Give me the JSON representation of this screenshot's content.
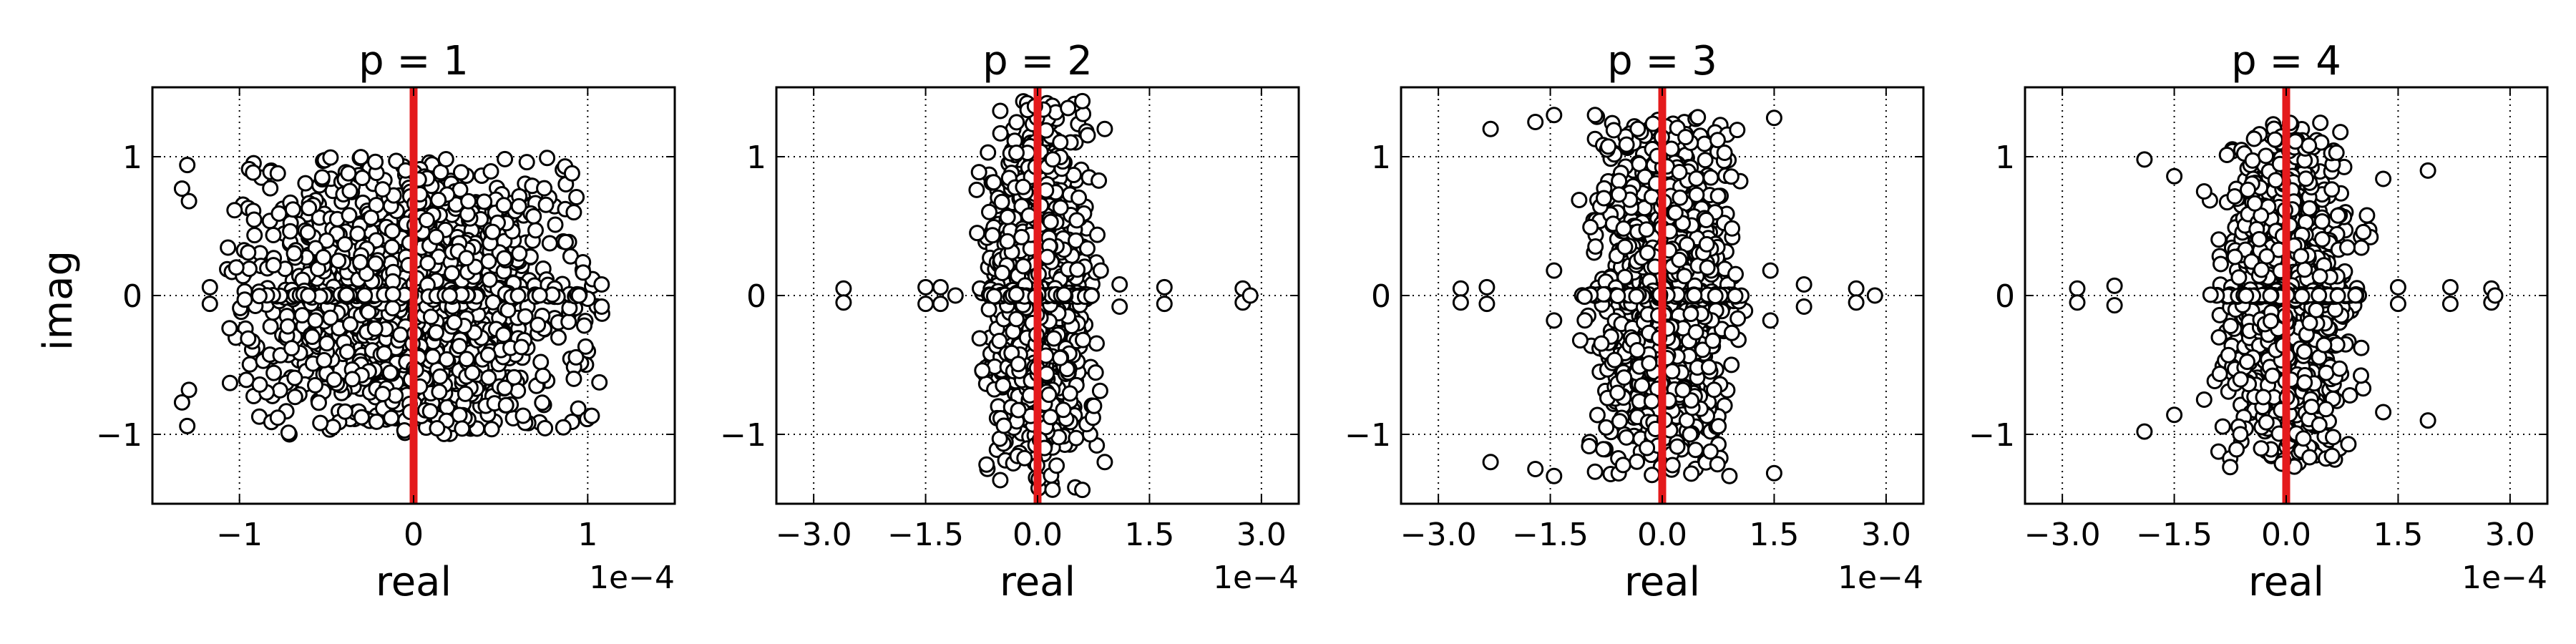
{
  "figure": {
    "ylabel": "imag",
    "xlabel": "real",
    "offset_text": "1e−4"
  },
  "chart_data": [
    {
      "type": "scatter",
      "title": "p = 1",
      "xlabel": "real",
      "ylabel": "imag",
      "x_scale_text": "1e−4",
      "xlim": [
        -1.5,
        1.5
      ],
      "ylim": [
        -1.5,
        1.5
      ],
      "x_ticks": [
        -1,
        0,
        1
      ],
      "x_tick_labels": [
        "−1",
        "0",
        "1"
      ],
      "y_ticks": [
        -1,
        0,
        1
      ],
      "y_tick_labels": [
        "−1",
        "0",
        "1"
      ],
      "grid": true,
      "marker": "open-circle",
      "reference_line": {
        "x": 0,
        "color": "#e41a1c"
      },
      "cloud": {
        "x_spread": 0.45,
        "y_spread": 0.55,
        "x_max": 1.1,
        "y_max": 1.0,
        "count": 1400
      },
      "points": [
        {
          "x": -1.3,
          "y": 0.94
        },
        {
          "x": -1.33,
          "y": 0.77
        },
        {
          "x": -1.29,
          "y": 0.68
        },
        {
          "x": -1.3,
          "y": -0.94
        },
        {
          "x": -1.33,
          "y": -0.77
        },
        {
          "x": -1.29,
          "y": -0.68
        },
        {
          "x": -1.17,
          "y": 0.06
        },
        {
          "x": -1.17,
          "y": -0.06
        },
        {
          "x": -0.97,
          "y": 0.03
        },
        {
          "x": -0.97,
          "y": -0.03
        },
        {
          "x": -0.95,
          "y": 0.31
        },
        {
          "x": -0.95,
          "y": -0.31
        },
        {
          "x": -0.78,
          "y": 0.88
        },
        {
          "x": -0.78,
          "y": -0.88
        },
        {
          "x": 0.87,
          "y": 0.93
        },
        {
          "x": 0.91,
          "y": 0.88
        },
        {
          "x": 0.91,
          "y": -0.91
        },
        {
          "x": 0.86,
          "y": -0.95
        },
        {
          "x": 0.92,
          "y": 0.6
        },
        {
          "x": 0.92,
          "y": -0.6
        },
        {
          "x": 1.08,
          "y": 0.08
        },
        {
          "x": 1.08,
          "y": -0.08
        },
        {
          "x": 0.95,
          "y": 0.0
        }
      ]
    },
    {
      "type": "scatter",
      "title": "p = 2",
      "xlabel": "",
      "ylabel": "",
      "x_scale_text": "1e−4",
      "xlim": [
        -3.5,
        3.5
      ],
      "ylim": [
        -1.5,
        1.5
      ],
      "x_ticks": [
        -3.0,
        -1.5,
        0.0,
        1.5,
        3.0
      ],
      "x_tick_labels": [
        "−3.0",
        "−1.5",
        "0.0",
        "1.5",
        "3.0"
      ],
      "y_ticks": [
        -1,
        0,
        1
      ],
      "y_tick_labels": [
        "−1",
        "0",
        "1"
      ],
      "grid": true,
      "marker": "open-circle",
      "reference_line": {
        "x": 0,
        "color": "#e41a1c"
      },
      "cloud": {
        "x_spread": 0.32,
        "y_spread": 0.65,
        "x_max": 0.85,
        "y_max": 1.4,
        "count": 1100
      },
      "points": [
        {
          "x": -2.6,
          "y": 0.05
        },
        {
          "x": -2.6,
          "y": -0.05
        },
        {
          "x": -1.5,
          "y": 0.06
        },
        {
          "x": -1.5,
          "y": -0.06
        },
        {
          "x": -1.3,
          "y": 0.06
        },
        {
          "x": -1.3,
          "y": -0.06
        },
        {
          "x": -1.1,
          "y": 0.0
        },
        {
          "x": 0.9,
          "y": 1.2
        },
        {
          "x": 0.9,
          "y": -1.2
        },
        {
          "x": 0.6,
          "y": 1.4
        },
        {
          "x": 0.6,
          "y": -1.4
        },
        {
          "x": 1.1,
          "y": 0.08
        },
        {
          "x": 1.1,
          "y": -0.08
        },
        {
          "x": 1.7,
          "y": 0.06
        },
        {
          "x": 1.7,
          "y": -0.06
        },
        {
          "x": 2.75,
          "y": 0.05
        },
        {
          "x": 2.75,
          "y": -0.05
        },
        {
          "x": 2.85,
          "y": 0.0
        },
        {
          "x": -0.5,
          "y": 1.33
        },
        {
          "x": -0.5,
          "y": -1.33
        }
      ]
    },
    {
      "type": "scatter",
      "title": "p = 3",
      "xlabel": "",
      "ylabel": "",
      "x_scale_text": "1e−4",
      "xlim": [
        -3.5,
        3.5
      ],
      "ylim": [
        -1.5,
        1.5
      ],
      "x_ticks": [
        -3.0,
        -1.5,
        0.0,
        1.5,
        3.0
      ],
      "x_tick_labels": [
        "−3.0",
        "−1.5",
        "0.0",
        "1.5",
        "3.0"
      ],
      "y_ticks": [
        -1,
        0,
        1
      ],
      "y_tick_labels": [
        "−1",
        "0",
        "1"
      ],
      "grid": true,
      "marker": "open-circle",
      "reference_line": {
        "x": 0,
        "color": "#e41a1c"
      },
      "cloud": {
        "x_spread": 0.42,
        "y_spread": 0.65,
        "x_max": 1.2,
        "y_max": 1.3,
        "count": 1200
      },
      "points": [
        {
          "x": -2.7,
          "y": 0.05
        },
        {
          "x": -2.7,
          "y": -0.05
        },
        {
          "x": -2.35,
          "y": 0.06
        },
        {
          "x": -2.35,
          "y": -0.06
        },
        {
          "x": -2.3,
          "y": 1.2
        },
        {
          "x": -2.3,
          "y": -1.2
        },
        {
          "x": -1.7,
          "y": 1.25
        },
        {
          "x": -1.7,
          "y": -1.25
        },
        {
          "x": -1.45,
          "y": 1.3
        },
        {
          "x": -1.45,
          "y": -1.3
        },
        {
          "x": -1.45,
          "y": 0.18
        },
        {
          "x": -1.45,
          "y": -0.18
        },
        {
          "x": 1.5,
          "y": 1.28
        },
        {
          "x": 1.5,
          "y": -1.28
        },
        {
          "x": 1.45,
          "y": 0.18
        },
        {
          "x": 1.45,
          "y": -0.18
        },
        {
          "x": 1.9,
          "y": 0.08
        },
        {
          "x": 1.9,
          "y": -0.08
        },
        {
          "x": 2.6,
          "y": 0.05
        },
        {
          "x": 2.6,
          "y": -0.05
        },
        {
          "x": 2.85,
          "y": 0.0
        },
        {
          "x": -0.9,
          "y": 1.3
        },
        {
          "x": 0.9,
          "y": -1.3
        }
      ]
    },
    {
      "type": "scatter",
      "title": "p = 4",
      "xlabel": "",
      "ylabel": "",
      "x_scale_text": "1e−4",
      "xlim": [
        -3.5,
        3.5
      ],
      "ylim": [
        -1.5,
        1.5
      ],
      "x_ticks": [
        -3.0,
        -1.5,
        0.0,
        1.5,
        3.0
      ],
      "x_tick_labels": [
        "−3.0",
        "−1.5",
        "0.0",
        "1.5",
        "3.0"
      ],
      "y_ticks": [
        -1,
        0,
        1
      ],
      "y_tick_labels": [
        "−1",
        "0",
        "1"
      ],
      "grid": true,
      "marker": "open-circle",
      "reference_line": {
        "x": 0,
        "color": "#e41a1c"
      },
      "cloud": {
        "x_spread": 0.38,
        "y_spread": 0.6,
        "x_max": 1.15,
        "y_max": 1.25,
        "count": 1100
      },
      "points": [
        {
          "x": -2.8,
          "y": 0.05
        },
        {
          "x": -2.8,
          "y": -0.05
        },
        {
          "x": -2.3,
          "y": 0.07
        },
        {
          "x": -2.3,
          "y": -0.07
        },
        {
          "x": -1.9,
          "y": 0.98
        },
        {
          "x": -1.9,
          "y": -0.98
        },
        {
          "x": -1.5,
          "y": 0.86
        },
        {
          "x": -1.5,
          "y": -0.86
        },
        {
          "x": -1.1,
          "y": 0.75
        },
        {
          "x": -1.1,
          "y": -0.75
        },
        {
          "x": 1.3,
          "y": 0.84
        },
        {
          "x": 1.3,
          "y": -0.84
        },
        {
          "x": 1.9,
          "y": 0.9
        },
        {
          "x": 1.9,
          "y": -0.9
        },
        {
          "x": 2.2,
          "y": 0.06
        },
        {
          "x": 2.2,
          "y": -0.06
        },
        {
          "x": 2.75,
          "y": 0.05
        },
        {
          "x": 2.75,
          "y": -0.05
        },
        {
          "x": 2.8,
          "y": 0.0
        },
        {
          "x": 1.5,
          "y": 0.06
        },
        {
          "x": 1.5,
          "y": -0.06
        }
      ]
    }
  ]
}
